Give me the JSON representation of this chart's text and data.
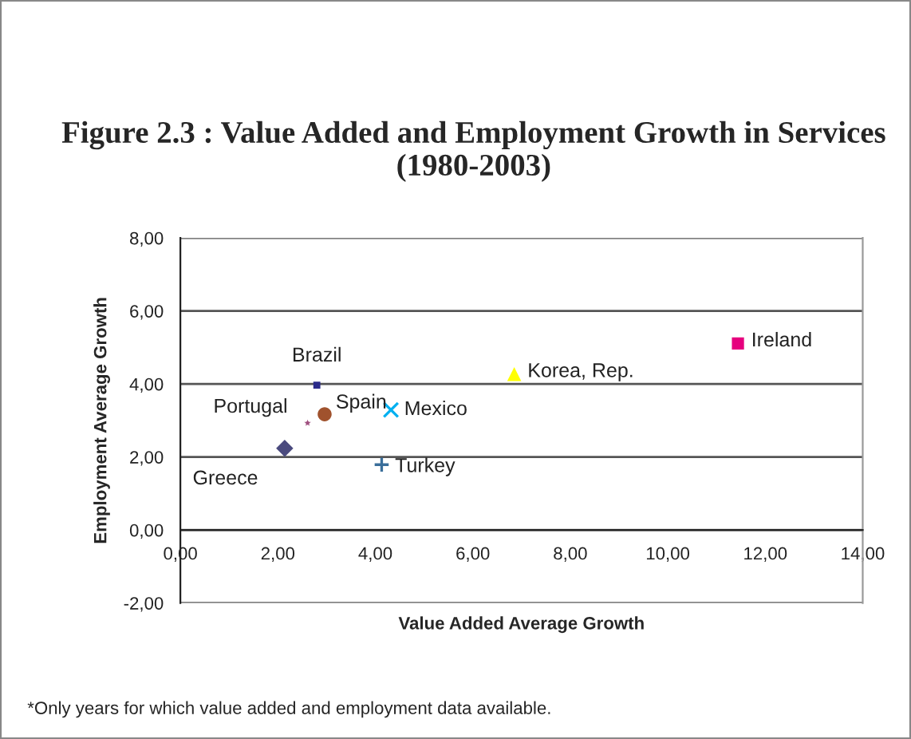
{
  "chart_data": {
    "type": "scatter",
    "title": "Figure 2.3 : Value Added and Employment Growth in Services (1980-2003)",
    "xlabel": "Value Added Average Growth",
    "ylabel": "Employment Average Growth",
    "series": [
      {
        "name": "Greece",
        "color": "#4a4a7e",
        "marker": "diamond",
        "x": [
          2.14
        ],
        "values": [
          2.24
        ]
      },
      {
        "name": "Portugal",
        "color": "#a05080",
        "marker": "star",
        "x": [
          2.61
        ],
        "values": [
          2.93
        ]
      },
      {
        "name": "Spain",
        "color": "#a0522d",
        "marker": "circle",
        "x": [
          2.96
        ],
        "values": [
          3.17
        ]
      },
      {
        "name": "Brazil",
        "color": "#2a2a8a",
        "marker": "square",
        "x": [
          2.8
        ],
        "values": [
          3.97
        ]
      },
      {
        "name": "Mexico",
        "color": "#00b0f0",
        "marker": "cross",
        "x": [
          4.32
        ],
        "values": [
          3.29
        ]
      },
      {
        "name": "Turkey",
        "color": "#3a6e9a",
        "marker": "plus",
        "x": [
          4.13
        ],
        "values": [
          1.79
        ]
      },
      {
        "name": "Korea, Rep.",
        "color": "#ffff00",
        "marker": "triangle",
        "x": [
          6.85
        ],
        "values": [
          4.27
        ]
      },
      {
        "name": "Ireland",
        "color": "#e6007e",
        "marker": "square",
        "x": [
          11.44
        ],
        "values": [
          5.11
        ]
      }
    ],
    "xlim": [
      0,
      14
    ],
    "ylim": [
      -2,
      8
    ],
    "xticks": [
      {
        "value": 0,
        "label": "0,00"
      },
      {
        "value": 2,
        "label": "2,00"
      },
      {
        "value": 4,
        "label": "4,00"
      },
      {
        "value": 6,
        "label": "6,00"
      },
      {
        "value": 8,
        "label": "8,00"
      },
      {
        "value": 10,
        "label": "10,00"
      },
      {
        "value": 12,
        "label": "12,00"
      },
      {
        "value": 14,
        "label": "14,00"
      }
    ],
    "yticks": [
      {
        "value": -2,
        "label": "-2,00"
      },
      {
        "value": 0,
        "label": "0,00"
      },
      {
        "value": 2,
        "label": "2,00"
      },
      {
        "value": 4,
        "label": "4,00"
      },
      {
        "value": 6,
        "label": "6,00"
      },
      {
        "value": 8,
        "label": "8,00"
      }
    ],
    "grid": "y",
    "annotations": [
      "*Only years for which value added and employment data available."
    ]
  }
}
